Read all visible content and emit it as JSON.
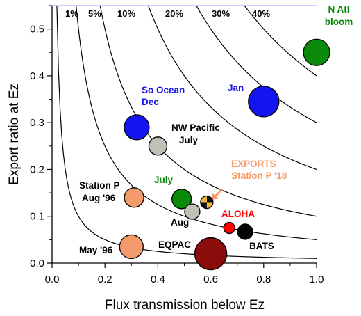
{
  "chart_data": {
    "type": "scatter",
    "title": "",
    "xlabel": "Flux transmission below Ez",
    "ylabel": "Export ratio at Ez",
    "xlim": [
      0.0,
      1.0
    ],
    "ylim": [
      0.0,
      0.55
    ],
    "xticks": [
      "0.0",
      "0.2",
      "0.4",
      "0.6",
      "0.8",
      "1.0"
    ],
    "yticks": [
      "0.0",
      "0.1",
      "0.2",
      "0.3",
      "0.4",
      "0.5"
    ],
    "grid": false,
    "isolines": {
      "description": "curves of constant product export ratio x transmission",
      "labels": [
        "1%",
        "5%",
        "10%",
        "20%",
        "30%",
        "40%"
      ],
      "values": [
        0.01,
        0.05,
        0.1,
        0.2,
        0.3,
        0.4
      ]
    },
    "points": [
      {
        "label": "N Atl bloom",
        "x": 1.0,
        "y": 0.45,
        "color": "#0a8a0a",
        "size": 19
      },
      {
        "label": "Jan",
        "x": 0.8,
        "y": 0.345,
        "color": "#1414f0",
        "size": 22
      },
      {
        "label": "So Ocean Dec",
        "x": 0.32,
        "y": 0.29,
        "color": "#1414f0",
        "size": 18
      },
      {
        "label": "NW Pacific July",
        "x": 0.4,
        "y": 0.25,
        "color": "#c0c0b8",
        "size": 13
      },
      {
        "label": "Station P Aug '96",
        "x": 0.31,
        "y": 0.14,
        "color": "#f59a6a",
        "size": 14
      },
      {
        "label": "July",
        "x": 0.49,
        "y": 0.137,
        "color": "#0a8a0a",
        "size": 14
      },
      {
        "label": "EXPORTS Station P '18",
        "x": 0.585,
        "y": 0.13,
        "color": "#f0b838",
        "size": 9
      },
      {
        "label": "Aug",
        "x": 0.53,
        "y": 0.11,
        "color": "#c0c0b8",
        "size": 11
      },
      {
        "label": "ALOHA",
        "x": 0.67,
        "y": 0.075,
        "color": "#ff0000",
        "size": 8
      },
      {
        "label": "BATS",
        "x": 0.73,
        "y": 0.067,
        "color": "#050505",
        "size": 11
      },
      {
        "label": "May '96",
        "x": 0.3,
        "y": 0.035,
        "color": "#f59a6a",
        "size": 17
      },
      {
        "label": "EQPAC",
        "x": 0.6,
        "y": 0.02,
        "color": "#8b0a0a",
        "size": 23
      }
    ]
  },
  "labels": {
    "n_atl_1": "N Atl",
    "n_atl_2": "bloom",
    "jan": "Jan",
    "so_ocean_1": "So Ocean",
    "so_ocean_2": "Dec",
    "nw_pacific_1": "NW Pacific",
    "nw_pacific_2": "July",
    "exports_1": "EXPORTS",
    "exports_2": "Station P '18",
    "station_p_1": "Station P",
    "station_p_2": "Aug '96",
    "july": "July",
    "aug": "Aug",
    "aloha": "ALOHA",
    "bats": "BATS",
    "may96": "May '96",
    "eqpac": "EQPAC"
  },
  "colors": {
    "blue_text": "#1414f0",
    "green_text": "#0a8a0a",
    "orange_text": "#f59a6a",
    "red_text": "#ff0000",
    "black_text": "#000000"
  }
}
